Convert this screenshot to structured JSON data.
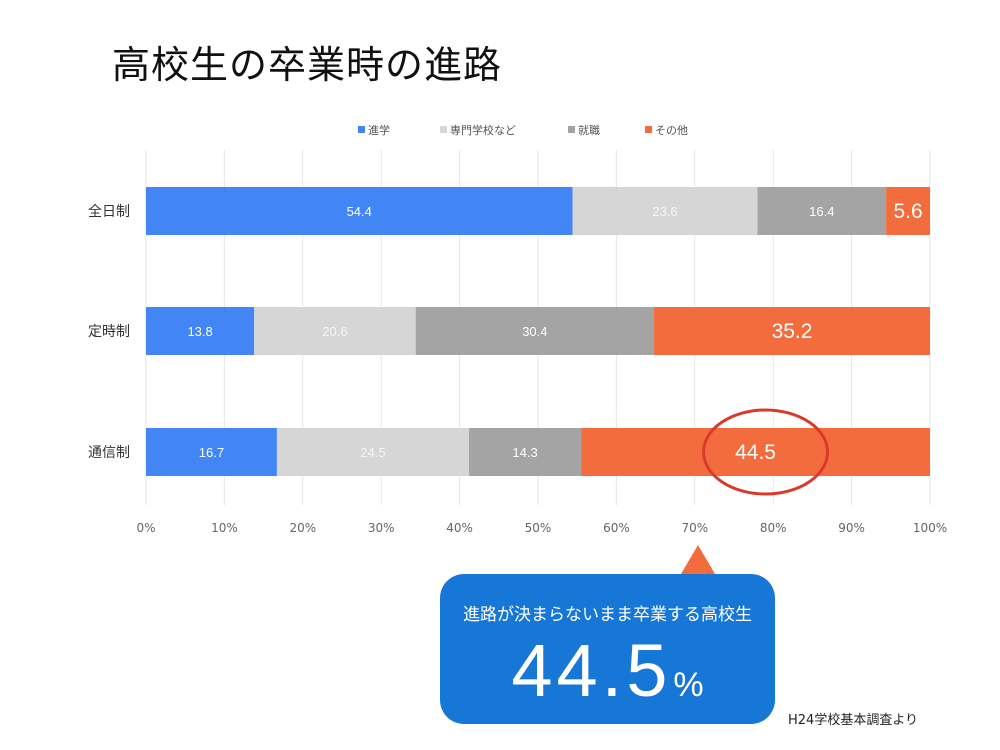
{
  "title": "高校生の卒業時の進路",
  "chart_data": {
    "type": "bar",
    "orientation": "horizontal",
    "stacked": true,
    "categories": [
      "全日制",
      "定時制",
      "通信制"
    ],
    "series": [
      {
        "name": "進学",
        "color": "#4285f4",
        "values": [
          54.4,
          13.8,
          16.7
        ]
      },
      {
        "name": "専門学校など",
        "color": "#d6d6d6",
        "values": [
          23.6,
          20.6,
          24.5
        ]
      },
      {
        "name": "就職",
        "color": "#a4a4a4",
        "values": [
          16.4,
          30.4,
          14.3
        ]
      },
      {
        "name": "その他",
        "color": "#f26c3d",
        "values": [
          5.6,
          35.2,
          44.5
        ]
      }
    ],
    "x_ticks": [
      "0%",
      "10%",
      "20%",
      "30%",
      "40%",
      "50%",
      "60%",
      "70%",
      "80%",
      "90%",
      "100%"
    ],
    "xlim": [
      0,
      100
    ],
    "grid": true,
    "legend_position": "top",
    "highlight": {
      "category": "通信制",
      "series": "その他",
      "color": "#d93a2b"
    }
  },
  "callout": {
    "text": "進路が決まらないまま卒業する高校生",
    "value": "44.5",
    "unit": "%"
  },
  "source": "H24学校基本調査より"
}
